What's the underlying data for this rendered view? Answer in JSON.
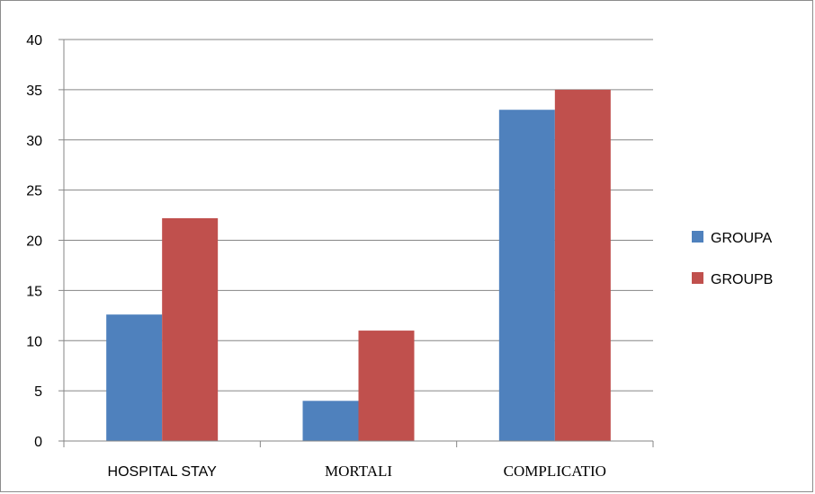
{
  "chart_data": {
    "type": "bar",
    "categories": [
      "HOSPITAL STAY",
      "MORTALI",
      "COMPLICATIO"
    ],
    "series": [
      {
        "name": "GROUPA",
        "values": [
          12.6,
          4,
          33
        ],
        "color": "#4f81bd"
      },
      {
        "name": "GROUPB",
        "values": [
          22.2,
          11,
          35
        ],
        "color": "#c0504d"
      }
    ],
    "title": "",
    "xlabel": "",
    "ylabel": "",
    "ylim": [
      0,
      40
    ],
    "yticks": [
      "0",
      "5",
      "10",
      "15",
      "20",
      "25",
      "30",
      "35",
      "40"
    ],
    "grid": true,
    "legend_position": "right"
  }
}
